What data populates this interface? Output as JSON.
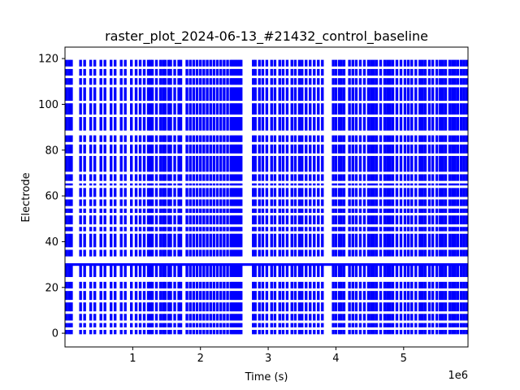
{
  "chart_data": {
    "type": "scatter",
    "title": "raster_plot_2024-06-13_#21432_control_baseline",
    "xlabel": "Time (s)",
    "ylabel": "Electrode",
    "x_offset_text": "1e6",
    "xlim": [
      0,
      5950000
    ],
    "ylim": [
      -6,
      125
    ],
    "xticks": [
      {
        "value": 1000000,
        "label": "1"
      },
      {
        "value": 2000000,
        "label": "2"
      },
      {
        "value": 3000000,
        "label": "3"
      },
      {
        "value": 4000000,
        "label": "4"
      },
      {
        "value": 5000000,
        "label": "5"
      }
    ],
    "yticks": [
      {
        "value": 0,
        "label": "0"
      },
      {
        "value": 20,
        "label": "20"
      },
      {
        "value": 40,
        "label": "40"
      },
      {
        "value": 60,
        "label": "60"
      },
      {
        "value": 80,
        "label": "80"
      },
      {
        "value": 100,
        "label": "100"
      },
      {
        "value": 120,
        "label": "120"
      }
    ],
    "marker_color": "#0000ff",
    "series": [
      {
        "electrodes": [
          0,
          119
        ],
        "burst_times": [
          20000,
          60000,
          95000,
          230000,
          290000,
          380000,
          440000,
          530000,
          590000,
          680000,
          740000,
          830000,
          890000,
          980000,
          1050000,
          1110000,
          1170000,
          1230000,
          1260000,
          1290000,
          1350000,
          1410000,
          1450000,
          1480000,
          1530000,
          1560000,
          1620000,
          1680000,
          1710000,
          1800000,
          1850000,
          1900000,
          1950000,
          2000000,
          2050000,
          2100000,
          2150000,
          2200000,
          2250000,
          2300000,
          2350000,
          2400000,
          2450000,
          2480000,
          2510000,
          2540000,
          2570000,
          2600000,
          2780000,
          2810000,
          2870000,
          2920000,
          2980000,
          3050000,
          3100000,
          3170000,
          3220000,
          3280000,
          3350000,
          3400000,
          3460000,
          3500000,
          3560000,
          3620000,
          3680000,
          3740000,
          3800000,
          3960000,
          4000000,
          4050000,
          4080000,
          4120000,
          4200000,
          4250000,
          4300000,
          4360000,
          4420000,
          4480000,
          4520000,
          4560000,
          4600000,
          4660000,
          4720000,
          4760000,
          4800000,
          4840000,
          4900000,
          4960000,
          5020000,
          5070000,
          5120000,
          5180000,
          5240000,
          5280000,
          5320000,
          5380000,
          5430000,
          5490000,
          5540000,
          5580000,
          5620000,
          5680000,
          5720000,
          5760000,
          5800000,
          5850000,
          5890000,
          5930000
        ],
        "silent_electrodes": [
          2,
          5,
          9,
          14,
          19,
          23,
          24,
          31,
          32,
          33,
          37,
          44,
          47,
          52,
          55,
          59,
          64,
          66,
          70,
          78,
          83,
          87,
          88,
          95,
          101,
          108,
          112,
          116
        ],
        "constant_line_electrode": 30
      }
    ]
  }
}
